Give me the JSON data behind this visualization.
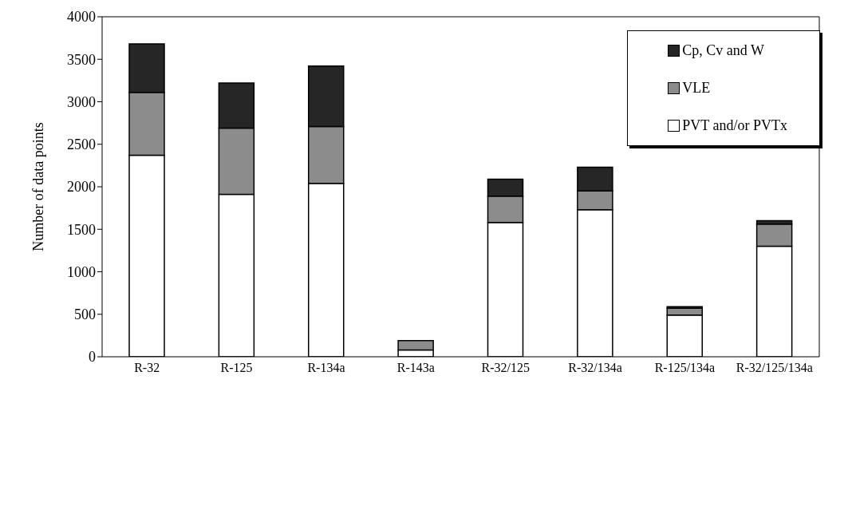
{
  "chart_data": {
    "type": "bar",
    "stacked": true,
    "ylabel": "Number of data points",
    "categories": [
      "R-32",
      "R-125",
      "R-134a",
      "R-143a",
      "R-32/125",
      "R-32/134a",
      "R-125/134a",
      "R-32/125/134a"
    ],
    "series": [
      {
        "name": "PVT and/or PVTx",
        "color": "#ffffff",
        "values": [
          2370,
          1910,
          2040,
          80,
          1580,
          1730,
          490,
          1300
        ]
      },
      {
        "name": "VLE",
        "color": "#8c8c8c",
        "values": [
          740,
          780,
          670,
          110,
          310,
          220,
          80,
          260
        ]
      },
      {
        "name": "Cp, Cv and W",
        "color": "#262626",
        "values": [
          570,
          530,
          710,
          0,
          200,
          280,
          20,
          40
        ]
      }
    ],
    "ylim": [
      0,
      4000
    ],
    "yticks": [
      0,
      500,
      1000,
      1500,
      2000,
      2500,
      3000,
      3500,
      4000
    ],
    "grid": false,
    "legend": "top right"
  }
}
